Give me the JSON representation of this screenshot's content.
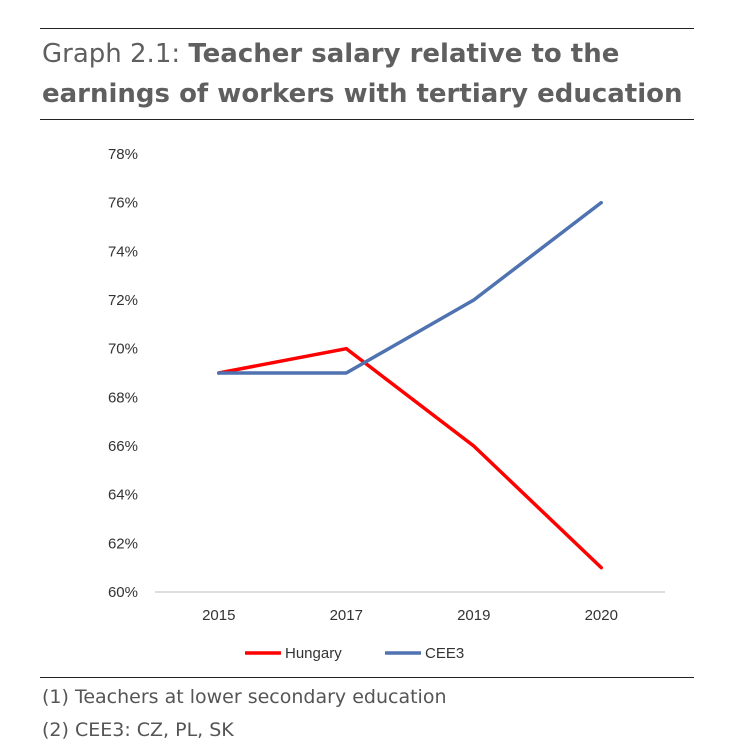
{
  "header": {
    "prefix": "Graph 2.1:",
    "title": "Teacher salary relative to the earnings of workers with tertiary education"
  },
  "chart_data": {
    "type": "line",
    "title": "Graph 2.1: Teacher salary relative to the earnings of workers with tertiary education",
    "categories": [
      "2015",
      "2017",
      "2019",
      "2020"
    ],
    "series": [
      {
        "name": "Hungary",
        "color": "#ff0000",
        "values": [
          69,
          70,
          66,
          61
        ]
      },
      {
        "name": "CEE3",
        "color": "#4f72b0",
        "values": [
          69,
          69,
          72,
          76
        ]
      }
    ],
    "ylim": [
      60,
      78
    ],
    "yticks": [
      "60%",
      "62%",
      "64%",
      "66%",
      "68%",
      "70%",
      "72%",
      "74%",
      "76%",
      "78%"
    ],
    "xlabel": "",
    "ylabel": "",
    "grid": false,
    "legend_position": "bottom"
  },
  "notes": [
    "(1) Teachers at lower secondary education",
    "(2) CEE3: CZ, PL, SK"
  ]
}
